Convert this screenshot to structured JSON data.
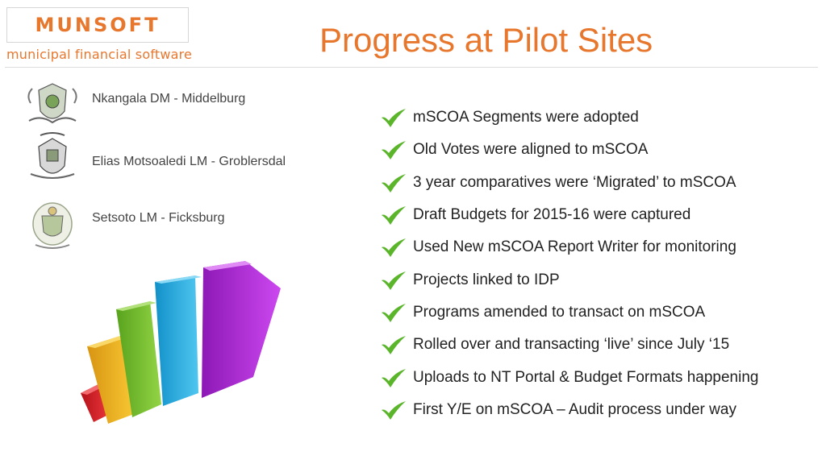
{
  "header": {
    "logo_text": "MUNSOFT",
    "logo_tagline": "municipal financial software",
    "title": "Progress at Pilot Sites"
  },
  "sites": [
    {
      "name": "Nkangala DM - Middelburg",
      "crest_icon": "nkangala-crest-icon"
    },
    {
      "name": "Elias Motsoaledi LM - Groblersdal",
      "crest_icon": "elias-motsoaledi-crest-icon"
    },
    {
      "name": "Setsoto LM - Ficksburg",
      "crest_icon": "setsoto-crest-icon"
    }
  ],
  "progress_items": [
    "mSCOA Segments were adopted",
    "Old Votes were aligned to mSCOA",
    "3 year comparatives were ‘Migrated’ to mSCOA",
    "Draft Budgets for 2015-16 were captured",
    "Used New mSCOA Report Writer for monitoring",
    "Projects linked to IDP",
    "Programs amended to transact on mSCOA",
    "Rolled over and transacting ‘live’ since July ‘15",
    "Uploads to NT Portal & Budget Formats happening",
    "First Y/E on mSCOA – Audit process under way"
  ],
  "colors": {
    "brand_orange": "#e8772e",
    "check_green": "#5ab52a",
    "bar_colors": [
      "#e0262b",
      "#f2b51c",
      "#7cc431",
      "#2fb4e6",
      "#b62fe0"
    ]
  },
  "icons": {
    "bullet": "checkmark-icon",
    "illustration": "rising-bars-icon"
  }
}
